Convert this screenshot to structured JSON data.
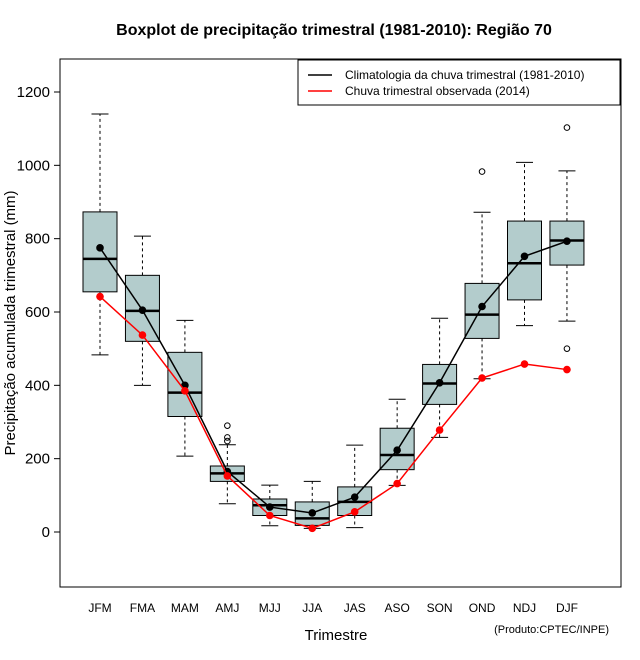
{
  "chart_data": {
    "type": "boxplot",
    "title": "Boxplot de precipitação trimestral (1981-2010): Região 70",
    "xlabel": "Trimestre",
    "ylabel": "Precipitação acumulada trimestral (mm)",
    "credit": "(Produto:CPTEC/INPE)",
    "ylim": [
      -150,
      1290
    ],
    "yticks": [
      "0",
      "200",
      "400",
      "600",
      "800",
      "1000",
      "1200"
    ],
    "ytick_values": [
      0,
      200,
      400,
      600,
      800,
      1000,
      1200
    ],
    "categories": [
      "JFM",
      "FMA",
      "MAM",
      "AMJ",
      "MJJ",
      "JJA",
      "JAS",
      "ASO",
      "SON",
      "OND",
      "NDJ",
      "DJF"
    ],
    "boxes": [
      {
        "min": 483,
        "q1": 655,
        "median": 745,
        "q3": 873,
        "max": 1140,
        "outliers": []
      },
      {
        "min": 400,
        "q1": 520,
        "median": 603,
        "q3": 700,
        "max": 807,
        "outliers": []
      },
      {
        "min": 207,
        "q1": 315,
        "median": 380,
        "q3": 490,
        "max": 577,
        "outliers": []
      },
      {
        "min": 77,
        "q1": 138,
        "median": 160,
        "q3": 180,
        "max": 238,
        "outliers": [
          290,
          258,
          248
        ]
      },
      {
        "min": 17,
        "q1": 45,
        "median": 73,
        "q3": 90,
        "max": 128,
        "outliers": []
      },
      {
        "min": 10,
        "q1": 18,
        "median": 37,
        "q3": 82,
        "max": 138,
        "outliers": []
      },
      {
        "min": 12,
        "q1": 45,
        "median": 82,
        "q3": 123,
        "max": 237,
        "outliers": []
      },
      {
        "min": 127,
        "q1": 170,
        "median": 210,
        "q3": 283,
        "max": 362,
        "outliers": []
      },
      {
        "min": 258,
        "q1": 348,
        "median": 405,
        "q3": 457,
        "max": 583,
        "outliers": []
      },
      {
        "min": 418,
        "q1": 528,
        "median": 593,
        "q3": 678,
        "max": 872,
        "outliers": [
          983
        ]
      },
      {
        "min": 563,
        "q1": 633,
        "median": 733,
        "q3": 848,
        "max": 1008,
        "outliers": []
      },
      {
        "min": 575,
        "q1": 728,
        "median": 795,
        "q3": 848,
        "max": 985,
        "outliers": [
          1103,
          500
        ]
      }
    ],
    "series": [
      {
        "name": "Climatologia da chuva trimestral (1981-2010)",
        "color": "#000000",
        "values": [
          775,
          605,
          400,
          165,
          68,
          52,
          95,
          223,
          407,
          615,
          752,
          793
        ]
      },
      {
        "name": "Chuva trimestral observada (2014)",
        "color": "#ff0000",
        "values": [
          642,
          537,
          385,
          153,
          45,
          10,
          55,
          132,
          278,
          420,
          458,
          443
        ]
      }
    ],
    "box_fill": "#b3cccc",
    "legend_position": "top-right"
  }
}
